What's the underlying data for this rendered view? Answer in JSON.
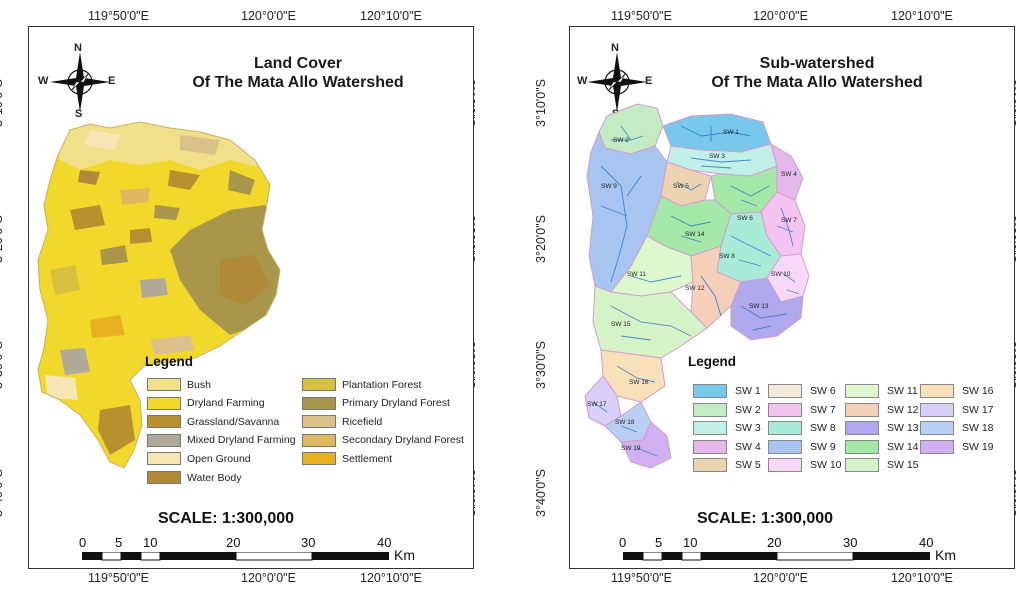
{
  "left_map": {
    "title_line1": "Land Cover",
    "title_line2": "Of The Mata Allo Watershed",
    "legend_title": "Legend",
    "legend": [
      {
        "label": "Bush",
        "color": "#f0e08a"
      },
      {
        "label": "Dryland Farming",
        "color": "#f2d82a"
      },
      {
        "label": "Grassland/Savanna",
        "color": "#b8902e"
      },
      {
        "label": "Mixed Dryland Farming",
        "color": "#b2aa98"
      },
      {
        "label": "Open Ground",
        "color": "#f5e6b4"
      },
      {
        "label": "Water Body",
        "color": "#b08a38"
      },
      {
        "label": "Plantation Forest",
        "color": "#d8c040"
      },
      {
        "label": "Primary Dryland Forest",
        "color": "#a8964a"
      },
      {
        "label": "Ricefield",
        "color": "#dcc08a"
      },
      {
        "label": "Secondary Dryland Forest",
        "color": "#e0b860"
      },
      {
        "label": "Settlement",
        "color": "#e8b020"
      }
    ],
    "scale": "SCALE: 1:300,000"
  },
  "right_map": {
    "title_line1": "Sub-watershed",
    "title_line2": "Of The Mata Allo Watershed",
    "legend_title": "Legend",
    "legend": [
      {
        "label": "SW 1",
        "color": "#78c8ec"
      },
      {
        "label": "SW 2",
        "color": "#c4ecc4"
      },
      {
        "label": "SW 3",
        "color": "#c0f0e8"
      },
      {
        "label": "SW 4",
        "color": "#e4b8ec"
      },
      {
        "label": "SW 5",
        "color": "#ecd4b0"
      },
      {
        "label": "SW 6",
        "color": "#f4e8d8"
      },
      {
        "label": "SW 7",
        "color": "#f4c4f0"
      },
      {
        "label": "SW 8",
        "color": "#a8ecd8"
      },
      {
        "label": "SW 9",
        "color": "#a8c4f0"
      },
      {
        "label": "SW 10",
        "color": "#f8d8f8"
      },
      {
        "label": "SW 11",
        "color": "#dcf8cc"
      },
      {
        "label": "SW 12",
        "color": "#f4d0b8"
      },
      {
        "label": "SW 13",
        "color": "#b0a8ec"
      },
      {
        "label": "SW 14",
        "color": "#a4e8a8"
      },
      {
        "label": "SW 15",
        "color": "#d4f4c8"
      },
      {
        "label": "SW 16",
        "color": "#f8e0b8"
      },
      {
        "label": "SW 17",
        "color": "#d8d0f8"
      },
      {
        "label": "SW 18",
        "color": "#b8d0f4"
      },
      {
        "label": "SW 19",
        "color": "#d0b0f0"
      }
    ],
    "map_labels": [
      "SW 1",
      "SW 2",
      "SW 3",
      "SW 4",
      "SW 5",
      "SW 6",
      "SW 7",
      "SW 8",
      "SW 9",
      "SW 10",
      "SW 11",
      "SW 12",
      "SW 13",
      "SW 14",
      "SW 15",
      "SW 16",
      "SW 17",
      "SW 18",
      "SW 19"
    ],
    "scale": "SCALE: 1:300,000"
  },
  "coords": {
    "lon": [
      "119°50'0\"E",
      "120°0'0\"E",
      "120°10'0\"E"
    ],
    "lat": [
      "3°10'0\"S",
      "3°20'0\"S",
      "3°30'0\"S",
      "3°40'0\"S"
    ]
  },
  "compass": {
    "n": "N",
    "s": "S",
    "e": "E",
    "w": "W"
  },
  "scalebar": {
    "numbers": [
      "0",
      "5",
      "10",
      "20",
      "30",
      "40"
    ],
    "unit": "Km"
  }
}
